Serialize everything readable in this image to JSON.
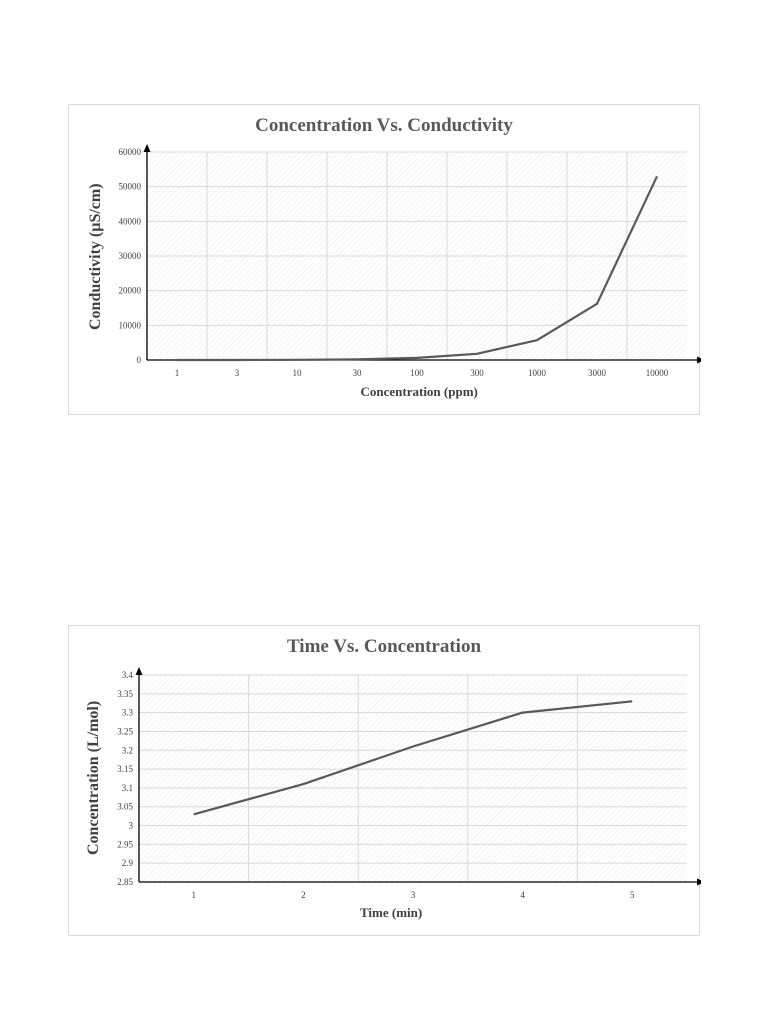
{
  "chart_data": [
    {
      "type": "line",
      "title": "Concentration Vs. Conductivity",
      "xlabel": "Concentration (ppm)",
      "ylabel": "Conductivity (µS/cm)",
      "categories": [
        "1",
        "3",
        "10",
        "30",
        "100",
        "300",
        "1000",
        "3000",
        "10000"
      ],
      "values": [
        0,
        0,
        50,
        200,
        600,
        1800,
        5700,
        16200,
        53000
      ],
      "ylim": [
        0,
        60000
      ],
      "yticks": [
        "0",
        "10000",
        "20000",
        "30000",
        "40000",
        "50000",
        "60000"
      ],
      "grid": true,
      "legend": "none",
      "line_color": "#595959"
    },
    {
      "type": "line",
      "title": "Time Vs. Concentration",
      "xlabel": "Time (min)",
      "ylabel": "Concentration (L/mol)",
      "categories": [
        "1",
        "2",
        "3",
        "4",
        "5"
      ],
      "values": [
        3.03,
        3.11,
        3.21,
        3.3,
        3.33
      ],
      "ylim": [
        2.85,
        3.4
      ],
      "yticks": [
        "2.85",
        "2.9",
        "2.95",
        "3",
        "3.05",
        "3.1",
        "3.15",
        "3.2",
        "3.25",
        "3.3",
        "3.35",
        "3.4"
      ],
      "grid": true,
      "legend": "none",
      "line_color": "#595959"
    }
  ]
}
